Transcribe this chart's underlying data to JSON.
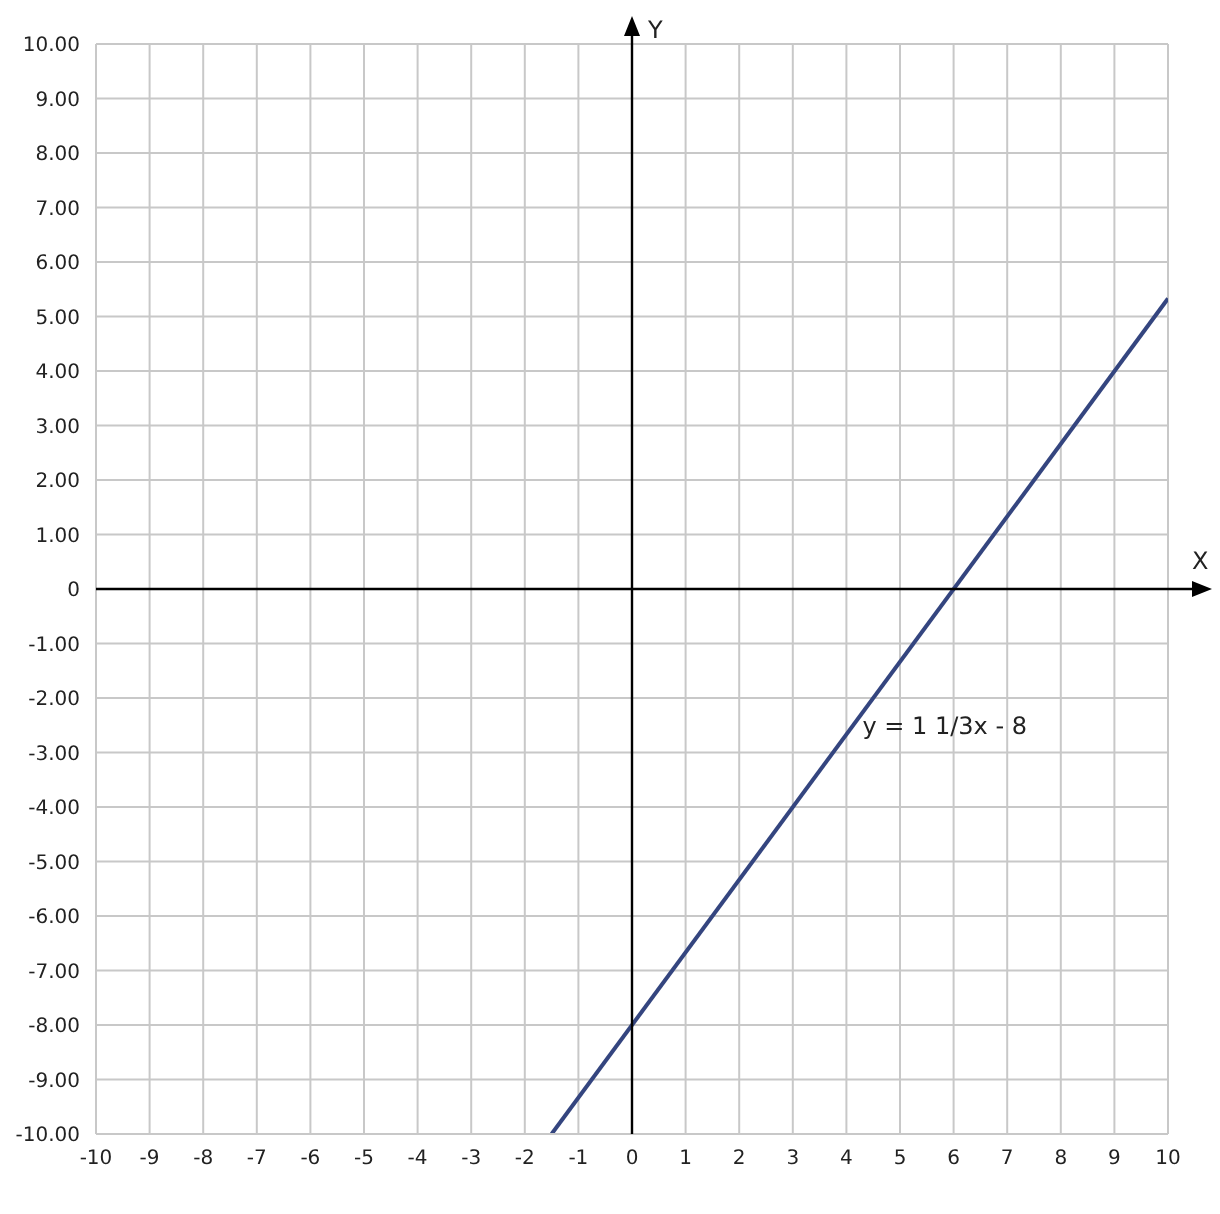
{
  "chart_data": {
    "type": "line",
    "xlabel": "X",
    "ylabel": "Y",
    "series": [
      {
        "color": "#34457f",
        "x": [
          -1.5,
          10
        ],
        "values": [
          -10,
          5.33
        ]
      }
    ],
    "xlim": [
      -10,
      10
    ],
    "xticks": [
      -10,
      -9,
      -8,
      -7,
      -6,
      -5,
      -4,
      -3,
      -2,
      -1,
      0,
      1,
      2,
      3,
      4,
      5,
      6,
      7,
      8,
      9,
      10
    ],
    "ylim": [
      -10,
      10
    ],
    "yticks": [
      {
        "value": -10,
        "label": "-10.00"
      },
      {
        "value": -9,
        "label": "-9.00"
      },
      {
        "value": -8,
        "label": "-8.00"
      },
      {
        "value": -7,
        "label": "-7.00"
      },
      {
        "value": -6,
        "label": "-6.00"
      },
      {
        "value": -5,
        "label": "-5.00"
      },
      {
        "value": -4,
        "label": "-4.00"
      },
      {
        "value": -3,
        "label": "-3.00"
      },
      {
        "value": -2,
        "label": "-2.00"
      },
      {
        "value": -1,
        "label": "-1.00"
      },
      {
        "value": 0,
        "label": "0"
      },
      {
        "value": 1,
        "label": "1.00"
      },
      {
        "value": 2,
        "label": "2.00"
      },
      {
        "value": 3,
        "label": "3.00"
      },
      {
        "value": 4,
        "label": "4.00"
      },
      {
        "value": 5,
        "label": "5.00"
      },
      {
        "value": 6,
        "label": "6.00"
      },
      {
        "value": 7,
        "label": "7.00"
      },
      {
        "value": 8,
        "label": "8.00"
      },
      {
        "value": 9,
        "label": "9.00"
      },
      {
        "value": 10,
        "label": "10.00"
      }
    ],
    "grid": true,
    "marker": "none",
    "line_style": "solid",
    "annotations": [
      {
        "text": "y = 1 1/3x - 8",
        "x": 4.3,
        "y": -2.5
      }
    ]
  }
}
